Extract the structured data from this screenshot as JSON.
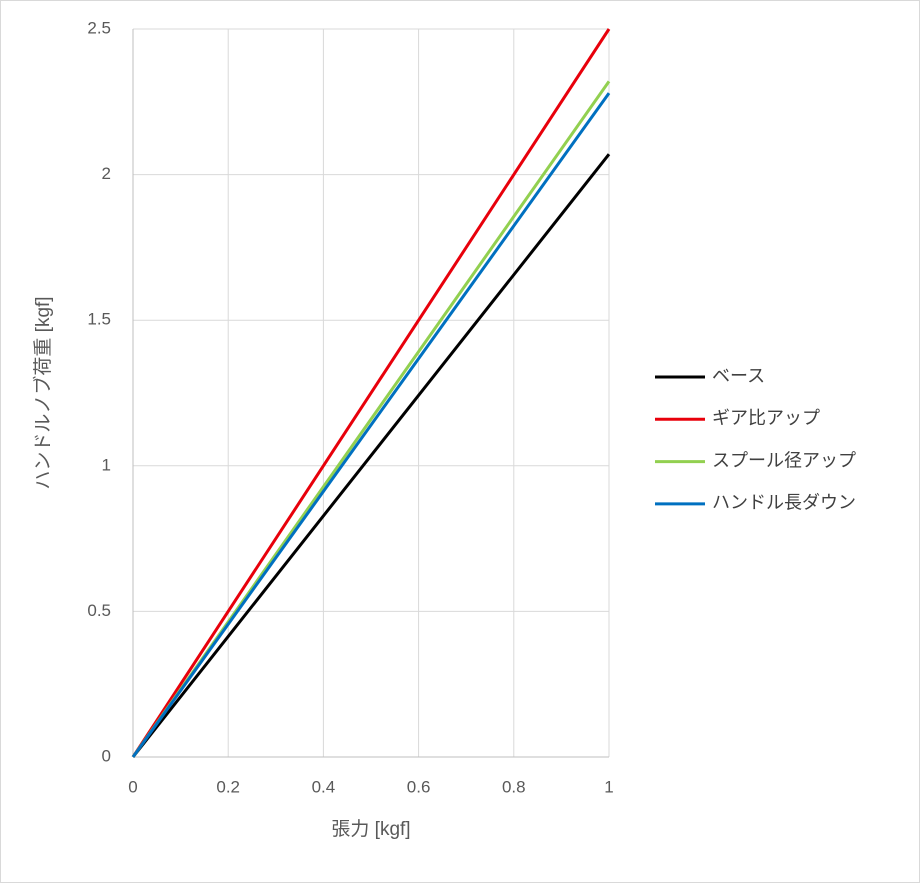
{
  "chart_data": {
    "type": "line",
    "x_label": "張力 [kgf]",
    "y_label": "ハンドルノブ荷重 [kgf]",
    "x": [
      0,
      1
    ],
    "series": [
      {
        "name": "ベース",
        "color": "#000000",
        "values": [
          0,
          2.07
        ]
      },
      {
        "name": "ギア比アップ",
        "color": "#e8000b",
        "values": [
          0,
          2.5
        ]
      },
      {
        "name": "スプール径アップ",
        "color": "#92d050",
        "values": [
          0,
          2.32
        ]
      },
      {
        "name": "ハンドル長ダウン",
        "color": "#0070c0",
        "values": [
          0,
          2.28
        ]
      }
    ],
    "xlim": [
      0,
      1
    ],
    "xticks": [
      0,
      0.2,
      0.4,
      0.6,
      0.8,
      1
    ],
    "ylim": [
      0,
      2.5
    ],
    "yticks": [
      0,
      0.5,
      1,
      1.5,
      2,
      2.5
    ],
    "grid": true,
    "legend": "right"
  }
}
